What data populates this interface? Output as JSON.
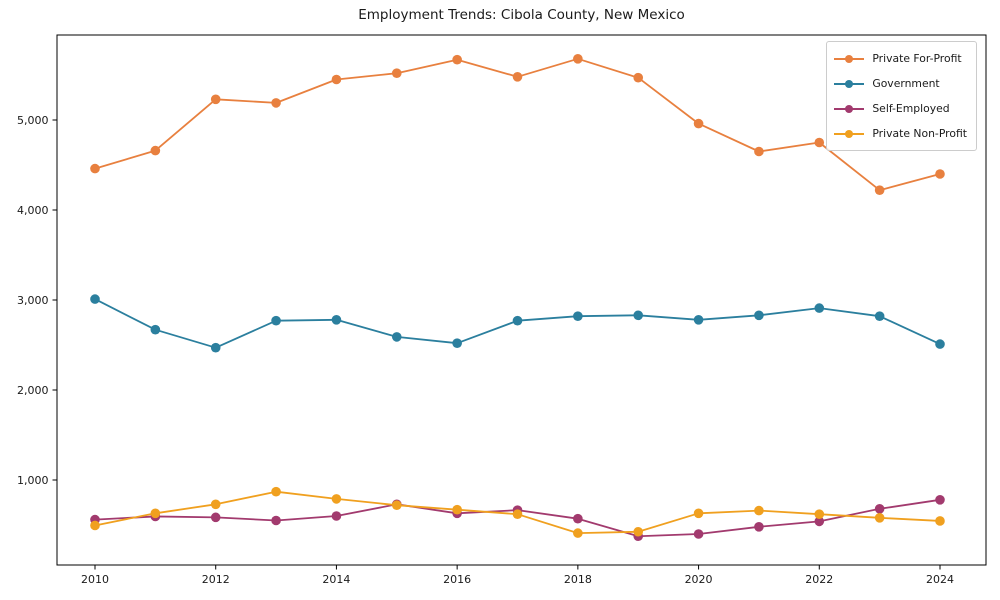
{
  "chart_data": {
    "type": "line",
    "title": "Employment Trends: Cibola County, New Mexico",
    "xlabel": "",
    "ylabel": "",
    "x": [
      2010,
      2011,
      2012,
      2013,
      2014,
      2015,
      2016,
      2017,
      2018,
      2019,
      2020,
      2021,
      2022,
      2023,
      2024
    ],
    "x_tick_labels": [
      "2010",
      "2012",
      "2014",
      "2016",
      "2018",
      "2020",
      "2022",
      "2024"
    ],
    "y_ticks": [
      {
        "value": 1000,
        "label": "1,000"
      },
      {
        "value": 2000,
        "label": "2,000"
      },
      {
        "value": 3000,
        "label": "3,000"
      },
      {
        "value": 4000,
        "label": "4,000"
      },
      {
        "value": 5000,
        "label": "5,000"
      }
    ],
    "xlim": [
      2009.3,
      2024.7
    ],
    "ylim": [
      100,
      5950
    ],
    "grid": false,
    "legend_position": "upper right",
    "axis_color": "#000000",
    "text_color": "#1a1a1a",
    "series": [
      {
        "name": "Private For-Profit",
        "color": "#e8803f",
        "marker": "circle",
        "values": [
          4460,
          4660,
          5230,
          5190,
          5450,
          5520,
          5670,
          5480,
          5680,
          5470,
          4960,
          4650,
          4750,
          4220,
          4400
        ]
      },
      {
        "name": "Government",
        "color": "#2b7f9e",
        "marker": "circle",
        "values": [
          3010,
          2670,
          2470,
          2770,
          2780,
          2590,
          2520,
          2770,
          2820,
          2830,
          2780,
          2830,
          2910,
          2820,
          2510
        ]
      },
      {
        "name": "Self-Employed",
        "color": "#a23a6e",
        "marker": "circle",
        "values": [
          560,
          595,
          585,
          550,
          600,
          730,
          630,
          665,
          570,
          375,
          400,
          480,
          540,
          680,
          780
        ]
      },
      {
        "name": "Private Non-Profit",
        "color": "#f0a01f",
        "marker": "circle",
        "values": [
          495,
          630,
          730,
          870,
          790,
          720,
          670,
          620,
          410,
          425,
          630,
          660,
          620,
          580,
          545
        ]
      }
    ]
  }
}
